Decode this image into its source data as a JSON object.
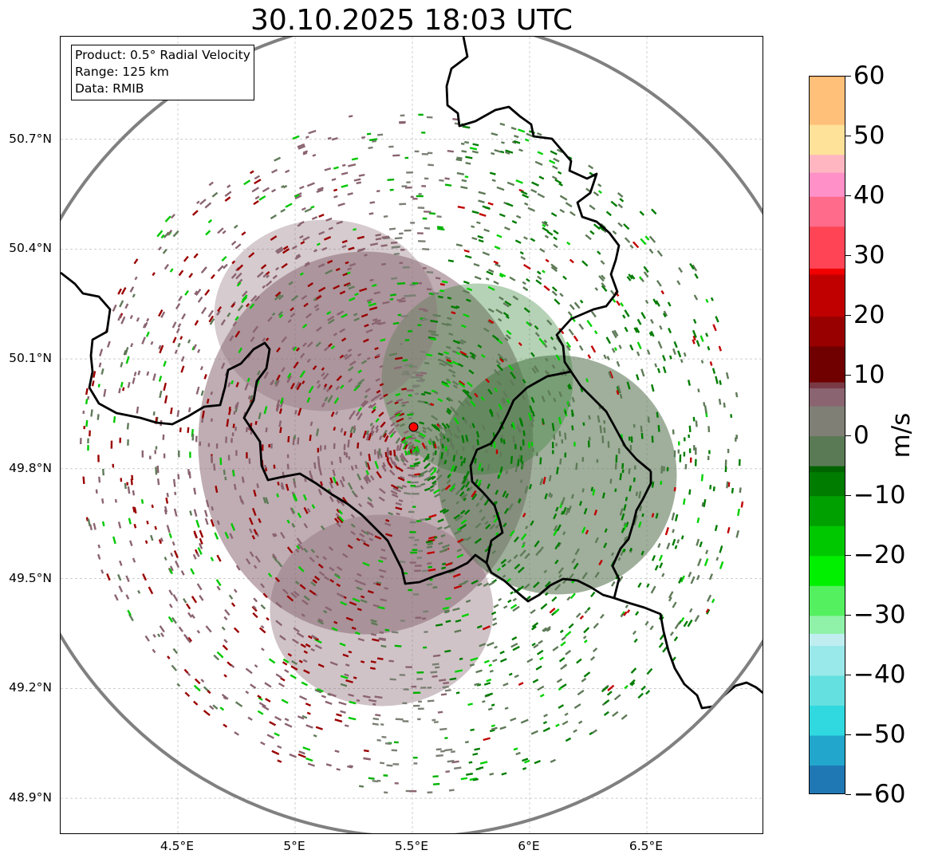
{
  "title": "30.10.2025 18:03 UTC",
  "info_box": {
    "product": "Product: 0.5° Radial Velocity",
    "range": "Range: 125 km",
    "data": "Data: RMIB"
  },
  "map": {
    "lon_range": [
      4.0,
      7.0
    ],
    "lat_range": [
      48.8,
      50.98
    ],
    "lat_ticks": [
      {
        "value": 50.7,
        "label": "50.7°N"
      },
      {
        "value": 50.4,
        "label": "50.4°N"
      },
      {
        "value": 50.1,
        "label": "50.1°N"
      },
      {
        "value": 49.8,
        "label": "49.8°N"
      },
      {
        "value": 49.5,
        "label": "49.5°N"
      },
      {
        "value": 49.2,
        "label": "49.2°N"
      },
      {
        "value": 48.9,
        "label": "48.9°N"
      }
    ],
    "lon_ticks": [
      {
        "value": 4.5,
        "label": "4.5°E"
      },
      {
        "value": 5.0,
        "label": "5°E"
      },
      {
        "value": 5.5,
        "label": "5.5°E"
      },
      {
        "value": 6.0,
        "label": "6°E"
      },
      {
        "value": 6.5,
        "label": "6.5°E"
      }
    ],
    "radar_site": {
      "lon": 5.505,
      "lat": 49.914
    },
    "range_circle_color": "#808080",
    "radar_marker_color": "#ff0000",
    "border_color": "#000000"
  },
  "colorbar": {
    "label": "m/s",
    "min": -60,
    "max": 60,
    "ticks": [
      "60",
      "50",
      "40",
      "30",
      "20",
      "10",
      "0",
      "−10",
      "−20",
      "−30",
      "−40",
      "−50",
      "−60"
    ],
    "tick_values": [
      60,
      50,
      40,
      30,
      20,
      10,
      0,
      -10,
      -20,
      -30,
      -40,
      -50,
      -60
    ],
    "stops": [
      {
        "v": -60,
        "color": "#1f77b4"
      },
      {
        "v": -55,
        "color": "#22a6cc"
      },
      {
        "v": -50,
        "color": "#2fd9df"
      },
      {
        "v": -45,
        "color": "#64e0e0"
      },
      {
        "v": -40,
        "color": "#9ae9ea"
      },
      {
        "v": -35,
        "color": "#c0eef0"
      },
      {
        "v": -33,
        "color": "#90f2a8"
      },
      {
        "v": -30,
        "color": "#55f060"
      },
      {
        "v": -25,
        "color": "#00f000"
      },
      {
        "v": -20,
        "color": "#00c800"
      },
      {
        "v": -15,
        "color": "#00a000"
      },
      {
        "v": -10,
        "color": "#007c00"
      },
      {
        "v": -6,
        "color": "#006400"
      },
      {
        "v": -5,
        "color": "#5a7a55"
      },
      {
        "v": 0,
        "color": "#7f7f75"
      },
      {
        "v": 5,
        "color": "#8a6470"
      },
      {
        "v": 8,
        "color": "#7a3a45"
      },
      {
        "v": 9,
        "color": "#700000"
      },
      {
        "v": 15,
        "color": "#980000"
      },
      {
        "v": 20,
        "color": "#c00000"
      },
      {
        "v": 27,
        "color": "#f00000"
      },
      {
        "v": 28,
        "color": "#ff4555"
      },
      {
        "v": 35,
        "color": "#ff6b8a"
      },
      {
        "v": 40,
        "color": "#ff90c8"
      },
      {
        "v": 44,
        "color": "#ffb6c1"
      },
      {
        "v": 47,
        "color": "#ffe29a"
      },
      {
        "v": 52,
        "color": "#ffc07a"
      },
      {
        "v": 60,
        "color": "#ffa058"
      }
    ]
  }
}
